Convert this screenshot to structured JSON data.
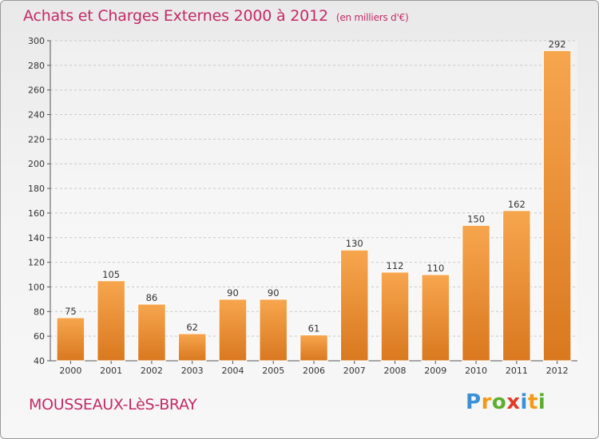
{
  "title": "Achats et Charges Externes 2000 à 2012",
  "subtitle": "(en milliers d'€)",
  "town": "MOUSSEAUX-LèS-BRAY",
  "brand": {
    "letters": [
      "P",
      "r",
      "o",
      "x",
      "i",
      "t",
      "i"
    ],
    "colors": [
      "#3b8fd4",
      "#f29a18",
      "#5cae2e",
      "#e23a2a",
      "#3b8fd4",
      "#f29a18",
      "#5cae2e"
    ]
  },
  "colors": {
    "bar_light": "#f7a64e",
    "bar_dark": "#d9781f",
    "text_accent": "#c42a66",
    "grid": "#c8c8c8"
  },
  "chart_data": {
    "type": "bar",
    "title": "Achats et Charges Externes 2000 à 2012",
    "subtitle": "(en milliers d'€)",
    "xlabel": "",
    "ylabel": "",
    "categories": [
      "2000",
      "2001",
      "2002",
      "2003",
      "2004",
      "2005",
      "2006",
      "2007",
      "2008",
      "2009",
      "2010",
      "2011",
      "2012"
    ],
    "values": [
      75,
      105,
      86,
      62,
      90,
      90,
      61,
      130,
      112,
      110,
      150,
      162,
      292
    ],
    "ylim": [
      40,
      300
    ],
    "yticks": [
      40,
      60,
      80,
      100,
      120,
      140,
      160,
      180,
      200,
      220,
      240,
      260,
      280,
      300
    ],
    "grid": true,
    "legend": "none"
  }
}
